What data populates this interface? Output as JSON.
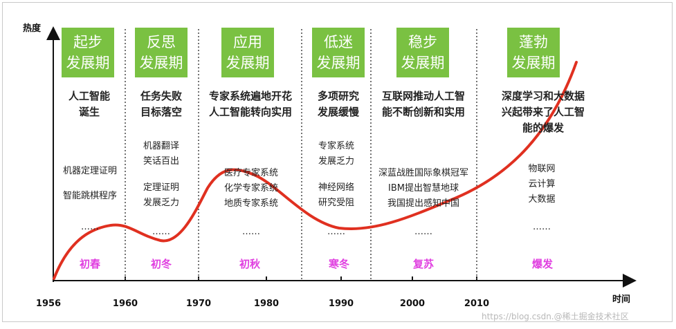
{
  "axes": {
    "y_label": "热度",
    "x_label": "时间",
    "years": [
      "1956",
      "1960",
      "1970",
      "1980",
      "1990",
      "2000",
      "2010"
    ]
  },
  "phases": [
    {
      "title": [
        "起步",
        "发展期"
      ],
      "description": [
        "人工智能",
        "诞生"
      ],
      "events": [
        "机器定理证明",
        "智能跳棋程序"
      ],
      "ellipsis": "……",
      "season": "初春"
    },
    {
      "title": [
        "反思",
        "发展期"
      ],
      "description": [
        "任务失败",
        "目标落空"
      ],
      "events": [
        "机器翻译",
        "笑话百出",
        "定理证明",
        "发展乏力"
      ],
      "ellipsis": "……",
      "season": "初冬"
    },
    {
      "title": [
        "应用",
        "发展期"
      ],
      "description": [
        "专家系统遍地开花",
        "人工智能转向实用"
      ],
      "events": [
        "医疗专家系统",
        "化学专家系统",
        "地质专家系统"
      ],
      "ellipsis": "……",
      "season": "初秋"
    },
    {
      "title": [
        "低迷",
        "发展期"
      ],
      "description": [
        "多项研究",
        "发展缓慢"
      ],
      "events": [
        "专家系统",
        "发展乏力",
        "神经网络",
        "研究受阻"
      ],
      "ellipsis": "……",
      "season": "寒冬"
    },
    {
      "title": [
        "稳步",
        "发展期"
      ],
      "description": [
        "互联网推动人工智",
        "能不断创新和实用"
      ],
      "events": [
        "深蓝战胜国际象棋冠军",
        "IBM提出智慧地球",
        "我国提出感知中国"
      ],
      "ellipsis": "……",
      "season": "复苏"
    },
    {
      "title": [
        "蓬勃",
        "发展期"
      ],
      "description": [
        "深度学习和大数据",
        "兴起带来了人工智",
        "能的爆发"
      ],
      "events": [
        "物联网",
        "云计算",
        "大数据"
      ],
      "ellipsis": "……",
      "season": "爆发"
    }
  ],
  "colors": {
    "phase_box": "#7ac142",
    "curve": "#e03020",
    "season_text": "#e040e0",
    "divider": "#444444"
  },
  "watermark": "https://blog.csdn.@稀土掘金技术社区"
}
